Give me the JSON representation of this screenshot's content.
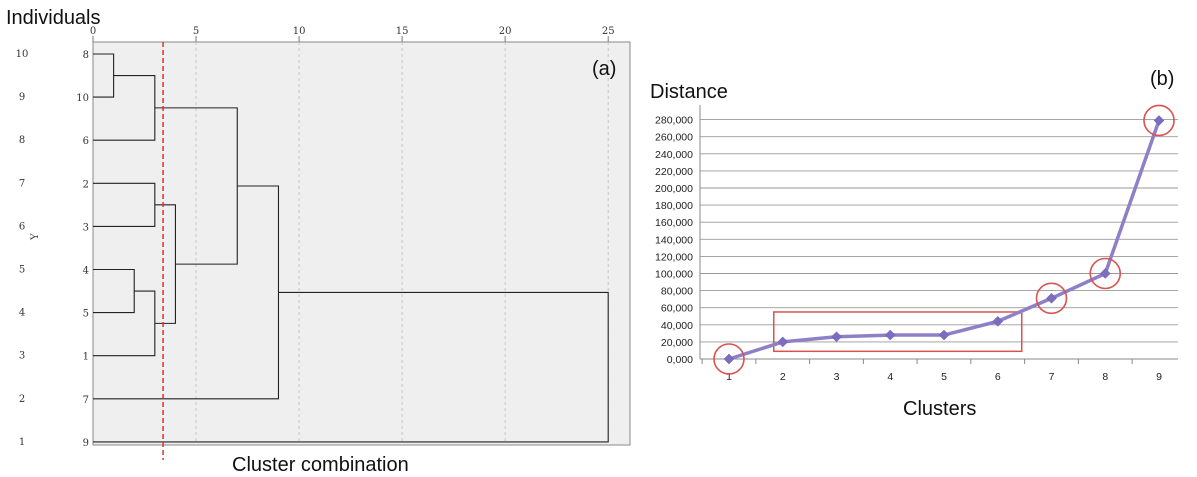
{
  "chart_data": [
    {
      "type": "dendrogram",
      "panel_label": "(a)",
      "top_left_label": "Individuals",
      "xlabel": "Cluster combination",
      "ylabel": "Y",
      "x_ticks": [
        0,
        5,
        10,
        15,
        20,
        25
      ],
      "xlim": [
        0,
        25
      ],
      "y_ticks": [
        1,
        2,
        3,
        4,
        5,
        6,
        7,
        8,
        9,
        10
      ],
      "leaves": [
        "8",
        "10",
        "6",
        "2",
        "3",
        "4",
        "5",
        "1",
        "7",
        "9"
      ],
      "cut_line": 3.4,
      "merges": [
        {
          "a": "8",
          "b": "10",
          "height": 1
        },
        {
          "a": "4",
          "b": "5",
          "height": 2
        },
        {
          "a": "{8,10}",
          "b": "6",
          "height": 3
        },
        {
          "a": "2",
          "b": "3",
          "height": 3
        },
        {
          "a": "{4,5}",
          "b": "1",
          "height": 3
        },
        {
          "a": "{2,3}",
          "b": "{4,5,1}",
          "height": 4
        },
        {
          "a": "{8,10,6}",
          "b": "{2,3,4,5,1}",
          "height": 7
        },
        {
          "a": "{8,10,6,2,3,4,5,1}",
          "b": "7",
          "height": 9
        },
        {
          "a": "{8,10,6,2,3,4,5,1,7}",
          "b": "9",
          "height": 25
        }
      ]
    },
    {
      "type": "line",
      "panel_label": "(b)",
      "title": "Distance",
      "xlabel": "Clusters",
      "categories": [
        "1",
        "2",
        "3",
        "4",
        "5",
        "6",
        "7",
        "8",
        "9"
      ],
      "values": [
        0,
        20000,
        26000,
        28000,
        28000,
        44000,
        71000,
        100000,
        279000
      ],
      "y_ticks": [
        "0,000",
        "20,000",
        "40,000",
        "60,000",
        "80,000",
        "100,000",
        "120,000",
        "140,000",
        "160,000",
        "180,000",
        "200,000",
        "220,000",
        "240,000",
        "260,000",
        "280,000"
      ],
      "ylim": [
        0,
        300000
      ],
      "series_color": "#8f7fc7",
      "circled_points": [
        1,
        7,
        8,
        9
      ],
      "boxed_range": [
        2,
        6
      ]
    }
  ]
}
